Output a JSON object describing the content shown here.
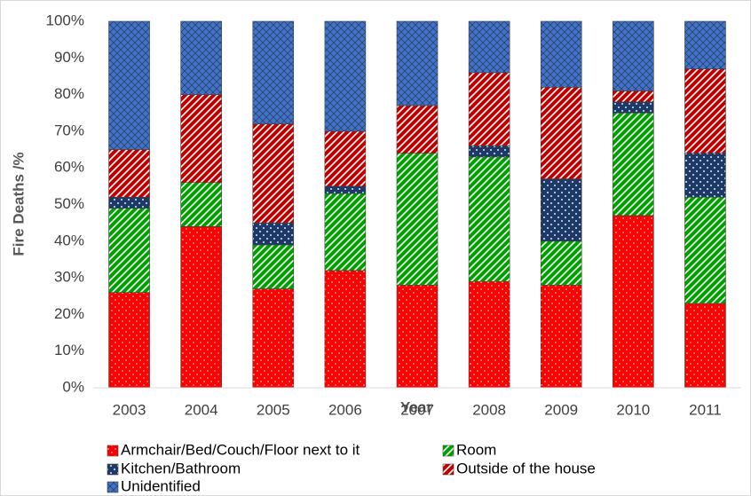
{
  "chart_data": {
    "type": "stacked_bar",
    "x_label": "Year",
    "y_label": "Fire Deaths /%",
    "categories": [
      "2003",
      "2004",
      "2005",
      "2006",
      "2007",
      "2008",
      "2009",
      "2010",
      "2011"
    ],
    "series": [
      {
        "name": "Armchair/Bed/Couch/Floor next to it",
        "color": "#ff0000",
        "values": [
          26,
          44,
          27,
          32,
          28,
          29,
          28,
          47,
          23
        ]
      },
      {
        "name": "Room",
        "color": "#00a000",
        "values": [
          23,
          12,
          12,
          21,
          36,
          34,
          12,
          28,
          29
        ]
      },
      {
        "name": "Kitchen/Bathroom",
        "color": "#1f3864",
        "values": [
          3,
          0,
          6,
          2,
          0,
          3,
          17,
          3,
          12
        ]
      },
      {
        "name": "Outside of the house",
        "color": "#c00000",
        "values": [
          13,
          24,
          27,
          15,
          13,
          20,
          25,
          3,
          23
        ]
      },
      {
        "name": "Unidentified",
        "color": "#4472c4",
        "values": [
          35,
          20,
          28,
          30,
          23,
          14,
          18,
          19,
          13
        ]
      }
    ],
    "ylim": [
      0,
      100
    ],
    "yticks": [
      {
        "value": 0,
        "label": "0%"
      },
      {
        "value": 10,
        "label": "10%"
      },
      {
        "value": 20,
        "label": "20%"
      },
      {
        "value": 30,
        "label": "30%"
      },
      {
        "value": 40,
        "label": "40%"
      },
      {
        "value": 50,
        "label": "50%"
      },
      {
        "value": 60,
        "label": "60%"
      },
      {
        "value": 70,
        "label": "70%"
      },
      {
        "value": 80,
        "label": "80%"
      },
      {
        "value": 90,
        "label": "90%"
      },
      {
        "value": 100,
        "label": "100%"
      }
    ],
    "grid": false,
    "legend": "bottom"
  }
}
